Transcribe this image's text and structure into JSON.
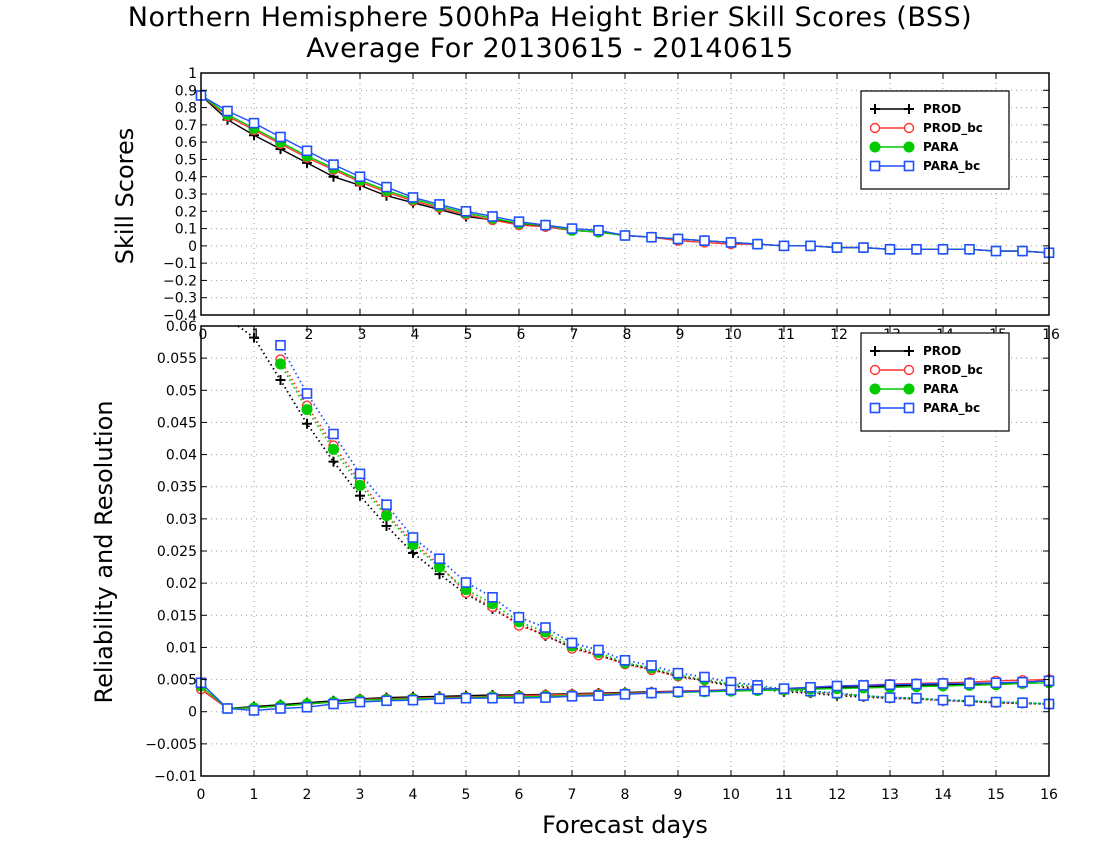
{
  "title": {
    "line1": "Northern Hemisphere 500hPa Height Brier Skill Scores (BSS)",
    "line2": "Average For 20130615 - 20140615"
  },
  "colors": {
    "PROD": "#000000",
    "PROD_bc": "#ff3333",
    "PARA": "#00cc00",
    "PARA_bc": "#1f4fff"
  },
  "chart_data": [
    {
      "type": "line",
      "ylabel": "Skill Scores",
      "ylim": [
        -0.4,
        1
      ],
      "y_ticks": [
        -0.4,
        -0.3,
        -0.2,
        -0.1,
        0,
        0.1,
        0.2,
        0.3,
        0.4,
        0.5,
        0.6,
        0.7,
        0.8,
        0.9,
        1
      ],
      "xlim": [
        0,
        16
      ],
      "x_ticks": [
        0,
        1,
        2,
        3,
        4,
        5,
        6,
        7,
        8,
        9,
        10,
        11,
        12,
        13,
        14,
        15,
        16
      ],
      "grid": true,
      "legend": "top-right",
      "x": [
        0,
        0.5,
        1,
        1.5,
        2,
        2.5,
        3,
        3.5,
        4,
        4.5,
        5,
        5.5,
        6,
        6.5,
        7,
        7.5,
        8,
        8.5,
        9,
        9.5,
        10,
        10.5,
        11,
        11.5,
        12,
        12.5,
        13,
        13.5,
        14,
        14.5,
        15,
        15.5,
        16
      ],
      "series": [
        {
          "name": "PROD",
          "marker": "plus",
          "values": [
            0.87,
            0.73,
            0.64,
            0.56,
            0.48,
            0.4,
            0.35,
            0.29,
            0.25,
            0.21,
            0.17,
            0.15,
            0.13,
            0.11,
            0.09,
            0.08,
            0.06,
            0.05,
            0.04,
            0.03,
            0.02,
            0.01,
            0.0,
            0.0,
            -0.01,
            -0.01,
            -0.02,
            -0.02,
            -0.02,
            -0.02,
            -0.03,
            -0.03,
            -0.04
          ]
        },
        {
          "name": "PROD_bc",
          "marker": "circle",
          "values": [
            0.87,
            0.75,
            0.67,
            0.59,
            0.51,
            0.44,
            0.37,
            0.31,
            0.26,
            0.22,
            0.18,
            0.15,
            0.12,
            0.11,
            0.09,
            0.08,
            0.06,
            0.05,
            0.03,
            0.02,
            0.01,
            0.01,
            0.0,
            0.0,
            -0.01,
            -0.01,
            -0.02,
            -0.02,
            -0.02,
            -0.02,
            -0.03,
            -0.03,
            -0.04
          ]
        },
        {
          "name": "PARA",
          "marker": "dot",
          "values": [
            0.87,
            0.76,
            0.68,
            0.6,
            0.52,
            0.45,
            0.38,
            0.32,
            0.27,
            0.23,
            0.19,
            0.16,
            0.13,
            0.12,
            0.09,
            0.08,
            0.06,
            0.05,
            0.04,
            0.03,
            0.02,
            0.01,
            0.0,
            0.0,
            -0.01,
            -0.01,
            -0.02,
            -0.02,
            -0.02,
            -0.02,
            -0.03,
            -0.03,
            -0.04
          ]
        },
        {
          "name": "PARA_bc",
          "marker": "square",
          "values": [
            0.87,
            0.78,
            0.71,
            0.63,
            0.55,
            0.47,
            0.4,
            0.34,
            0.28,
            0.24,
            0.2,
            0.17,
            0.14,
            0.12,
            0.1,
            0.09,
            0.06,
            0.05,
            0.04,
            0.03,
            0.02,
            0.01,
            0.0,
            0.0,
            -0.01,
            -0.01,
            -0.02,
            -0.02,
            -0.02,
            -0.02,
            -0.03,
            -0.03,
            -0.04
          ]
        }
      ]
    },
    {
      "type": "line",
      "ylabel": "Reliability and Resolution",
      "xlabel": "Forecast days",
      "ylim": [
        -0.01,
        0.06
      ],
      "y_ticks": [
        -0.01,
        -0.005,
        0,
        0.005,
        0.01,
        0.015,
        0.02,
        0.025,
        0.03,
        0.035,
        0.04,
        0.045,
        0.05,
        0.055,
        0.06
      ],
      "xlim": [
        0,
        16
      ],
      "x_ticks": [
        0,
        1,
        2,
        3,
        4,
        5,
        6,
        7,
        8,
        9,
        10,
        11,
        12,
        13,
        14,
        15,
        16
      ],
      "grid": true,
      "legend": "top-right",
      "x": [
        0,
        0.5,
        1,
        1.5,
        2,
        2.5,
        3,
        3.5,
        4,
        4.5,
        5,
        5.5,
        6,
        6.5,
        7,
        7.5,
        8,
        8.5,
        9,
        9.5,
        10,
        10.5,
        11,
        11.5,
        12,
        12.5,
        13,
        13.5,
        14,
        14.5,
        15,
        15.5,
        16
      ],
      "reliability_series": [
        {
          "name": "PROD",
          "marker": "plus",
          "values": [
            0.0035,
            0.0005,
            0.0008,
            0.0011,
            0.0014,
            0.0017,
            0.002,
            0.0022,
            0.0023,
            0.0024,
            0.0025,
            0.0026,
            0.0026,
            0.0027,
            0.0028,
            0.0029,
            0.003,
            0.0031,
            0.0032,
            0.0033,
            0.0034,
            0.0035,
            0.0036,
            0.0037,
            0.0038,
            0.0039,
            0.004,
            0.0041,
            0.0042,
            0.0043,
            0.0044,
            0.0046,
            0.0048
          ]
        },
        {
          "name": "PROD_bc",
          "marker": "circle",
          "values": [
            0.0035,
            0.0005,
            0.0006,
            0.0009,
            0.0012,
            0.0015,
            0.0019,
            0.002,
            0.0021,
            0.0022,
            0.0023,
            0.0024,
            0.0025,
            0.0026,
            0.0027,
            0.0028,
            0.0029,
            0.003,
            0.0032,
            0.0033,
            0.0034,
            0.0035,
            0.0036,
            0.0038,
            0.004,
            0.0041,
            0.0043,
            0.0044,
            0.0045,
            0.0046,
            0.0048,
            0.0049,
            0.005
          ]
        },
        {
          "name": "PARA",
          "marker": "dot",
          "values": [
            0.004,
            0.0005,
            0.0006,
            0.0009,
            0.0012,
            0.0015,
            0.0018,
            0.0019,
            0.002,
            0.0021,
            0.0022,
            0.0023,
            0.0023,
            0.0024,
            0.0025,
            0.0026,
            0.0028,
            0.0029,
            0.003,
            0.0031,
            0.0032,
            0.0033,
            0.0034,
            0.0035,
            0.0036,
            0.0037,
            0.0038,
            0.0039,
            0.004,
            0.0041,
            0.0042,
            0.0044,
            0.0045
          ]
        },
        {
          "name": "PARA_bc",
          "marker": "square",
          "values": [
            0.0045,
            0.0005,
            0.0002,
            0.0005,
            0.0007,
            0.0012,
            0.0015,
            0.0017,
            0.0018,
            0.002,
            0.0021,
            0.0021,
            0.0021,
            0.0022,
            0.0024,
            0.0025,
            0.0027,
            0.0029,
            0.0031,
            0.0032,
            0.0034,
            0.0035,
            0.0036,
            0.0038,
            0.004,
            0.0041,
            0.0042,
            0.0043,
            0.0044,
            0.0044,
            0.0045,
            0.0046,
            0.0048
          ]
        }
      ],
      "resolution_series": [
        {
          "name": "PROD",
          "marker": "plus",
          "values": [
            null,
            null,
            0.0582,
            0.0516,
            0.0448,
            0.0389,
            0.0336,
            0.0289,
            0.0247,
            0.0214,
            0.0183,
            0.016,
            0.0137,
            0.0118,
            0.01,
            0.0088,
            0.0075,
            0.0066,
            0.0055,
            0.0048,
            0.004,
            0.0036,
            0.0031,
            0.0029,
            0.0025,
            0.0023,
            0.0021,
            0.002,
            0.0018,
            0.0016,
            0.0014,
            0.0013,
            0.0012
          ]
        },
        {
          "name": "PROD_bc",
          "marker": "circle",
          "values": [
            null,
            null,
            null,
            0.0548,
            0.0476,
            0.0414,
            0.0358,
            0.0308,
            0.0264,
            0.0228,
            0.0185,
            0.0163,
            0.0134,
            0.012,
            0.0098,
            0.0088,
            0.0074,
            0.0065,
            0.0055,
            0.0049,
            0.0042,
            0.0038,
            0.0033,
            0.003,
            0.0027,
            0.0024,
            0.0021,
            0.002,
            0.0017,
            0.0016,
            0.0014,
            0.0013,
            0.0012
          ]
        },
        {
          "name": "PARA",
          "marker": "dot",
          "values": [
            null,
            null,
            null,
            0.0541,
            0.047,
            0.0408,
            0.0352,
            0.0305,
            0.026,
            0.0225,
            0.019,
            0.0168,
            0.014,
            0.0124,
            0.0102,
            0.0092,
            0.0076,
            0.0068,
            0.0057,
            0.005,
            0.0043,
            0.0039,
            0.0034,
            0.0031,
            0.0028,
            0.0025,
            0.0022,
            0.0021,
            0.0018,
            0.0017,
            0.0015,
            0.0014,
            0.0012
          ]
        },
        {
          "name": "PARA_bc",
          "marker": "square",
          "values": [
            null,
            null,
            null,
            0.057,
            0.0495,
            0.0432,
            0.037,
            0.0322,
            0.0271,
            0.0238,
            0.0201,
            0.0178,
            0.0147,
            0.0131,
            0.0107,
            0.0096,
            0.008,
            0.0072,
            0.006,
            0.0054,
            0.0046,
            0.0041,
            0.0035,
            0.0032,
            0.0029,
            0.0025,
            0.0022,
            0.0021,
            0.0018,
            0.0017,
            0.0015,
            0.0014,
            0.0012
          ]
        }
      ]
    }
  ]
}
